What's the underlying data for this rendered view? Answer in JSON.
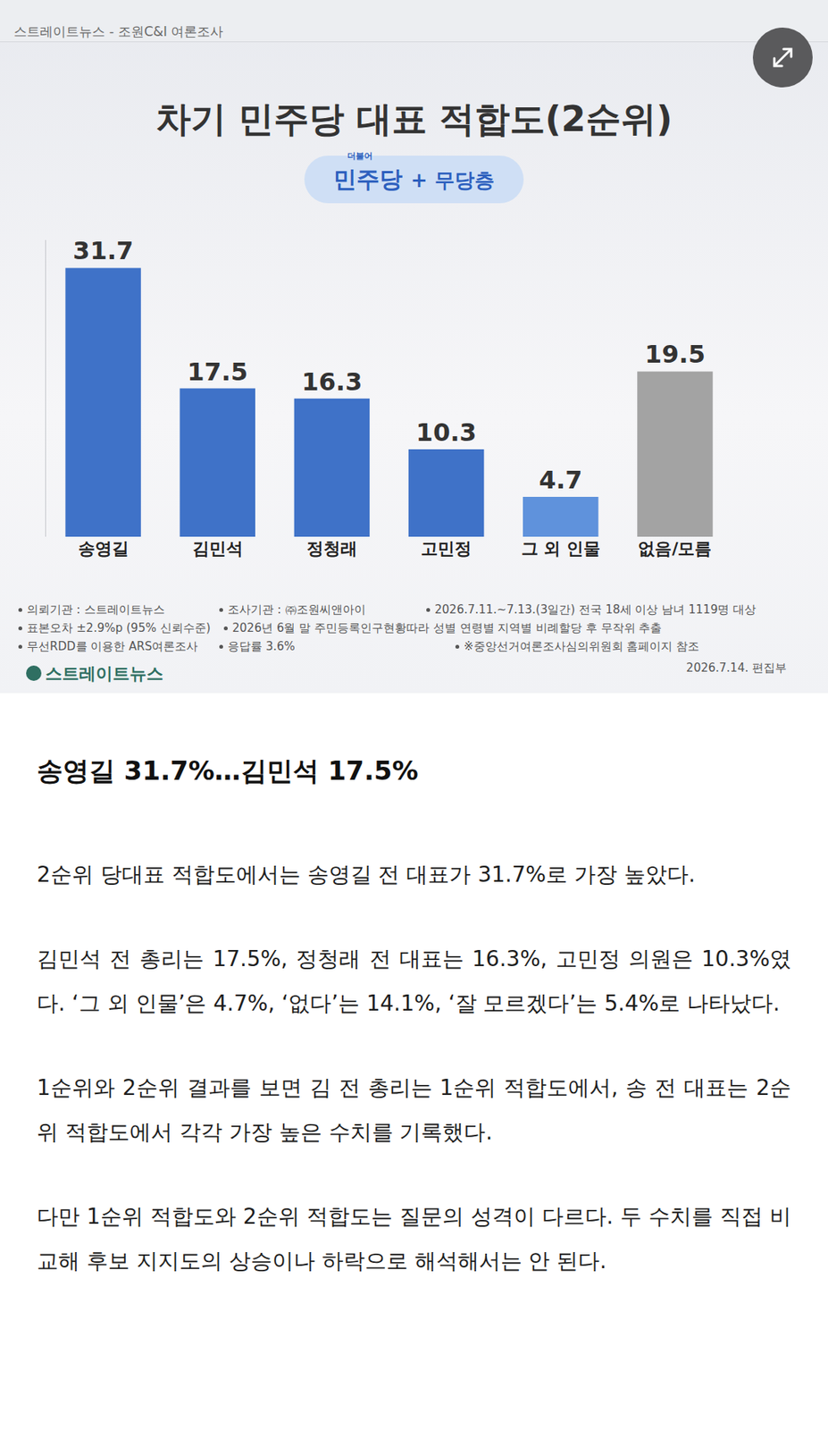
{
  "header": {
    "source": "스트레이트뉴스 - 조원C&I 여론조사"
  },
  "badge": {
    "party_prefix": "더불어",
    "party": "민주당",
    "plus": "+ 무당층"
  },
  "chart_data": {
    "type": "bar",
    "title": "차기 민주당 대표 적합도(2순위)",
    "categories": [
      "송영길",
      "김민석",
      "정청래",
      "고민정",
      "그 외 인물",
      "없음/모름"
    ],
    "values": [
      31.7,
      17.5,
      16.3,
      10.3,
      4.7,
      19.5
    ],
    "colors": [
      "#3f72c8",
      "#3f72c8",
      "#3f72c8",
      "#3f72c8",
      "#5f92dc",
      "#a3a3a3"
    ],
    "ylim": [
      0,
      35
    ],
    "yticks": [],
    "grid": false,
    "data_labels": true,
    "tick_labels": "x"
  },
  "notes": [
    [
      "의뢰기관 : 스트레이트뉴스",
      "조사기관 : ㈜조원씨앤아이",
      "2026.7.11.~7.13.(3일간) 전국 18세 이상 남녀 1119명 대상"
    ],
    [
      "표본오차 ±2.9%p (95% 신뢰수준)",
      "2026년 6월 말 주민등록인구현황따라 성별 연령별 지역별 비례할당 후 무작위 추출"
    ],
    [
      "무선RDD를 이용한 ARS여론조사",
      "응답률 3.6%",
      "※중앙선거여론조사심의위원회 홈페이지 참조"
    ]
  ],
  "footer": {
    "logo": "스트레이트뉴스",
    "date": "2026.7.14. 편집부"
  },
  "article": {
    "heading": "송영길 31.7%…김민석 17.5%",
    "paragraphs": [
      "2순위 당대표 적합도에서는 송영길 전 대표가 31.7%로 가장 높았다.",
      "김민석 전 총리는 17.5%, 정청래 전 대표는 16.3%, 고민정 의원은 10.3%였다. ‘그 외 인물’은 4.7%, ‘없다’는 14.1%, ‘잘 모르겠다’는 5.4%로 나타났다.",
      "1순위와 2순위 결과를 보면 김 전 총리는 1순위 적합도에서, 송 전 대표는 2순위 적합도에서 각각 가장 높은 수치를 기록했다.",
      "다만 1순위 적합도와 2순위 적합도는 질문의 성격이 다르다. 두 수치를 직접 비교해 후보 지지도의 상승이나 하락으로 해석해서는 안 된다."
    ]
  }
}
